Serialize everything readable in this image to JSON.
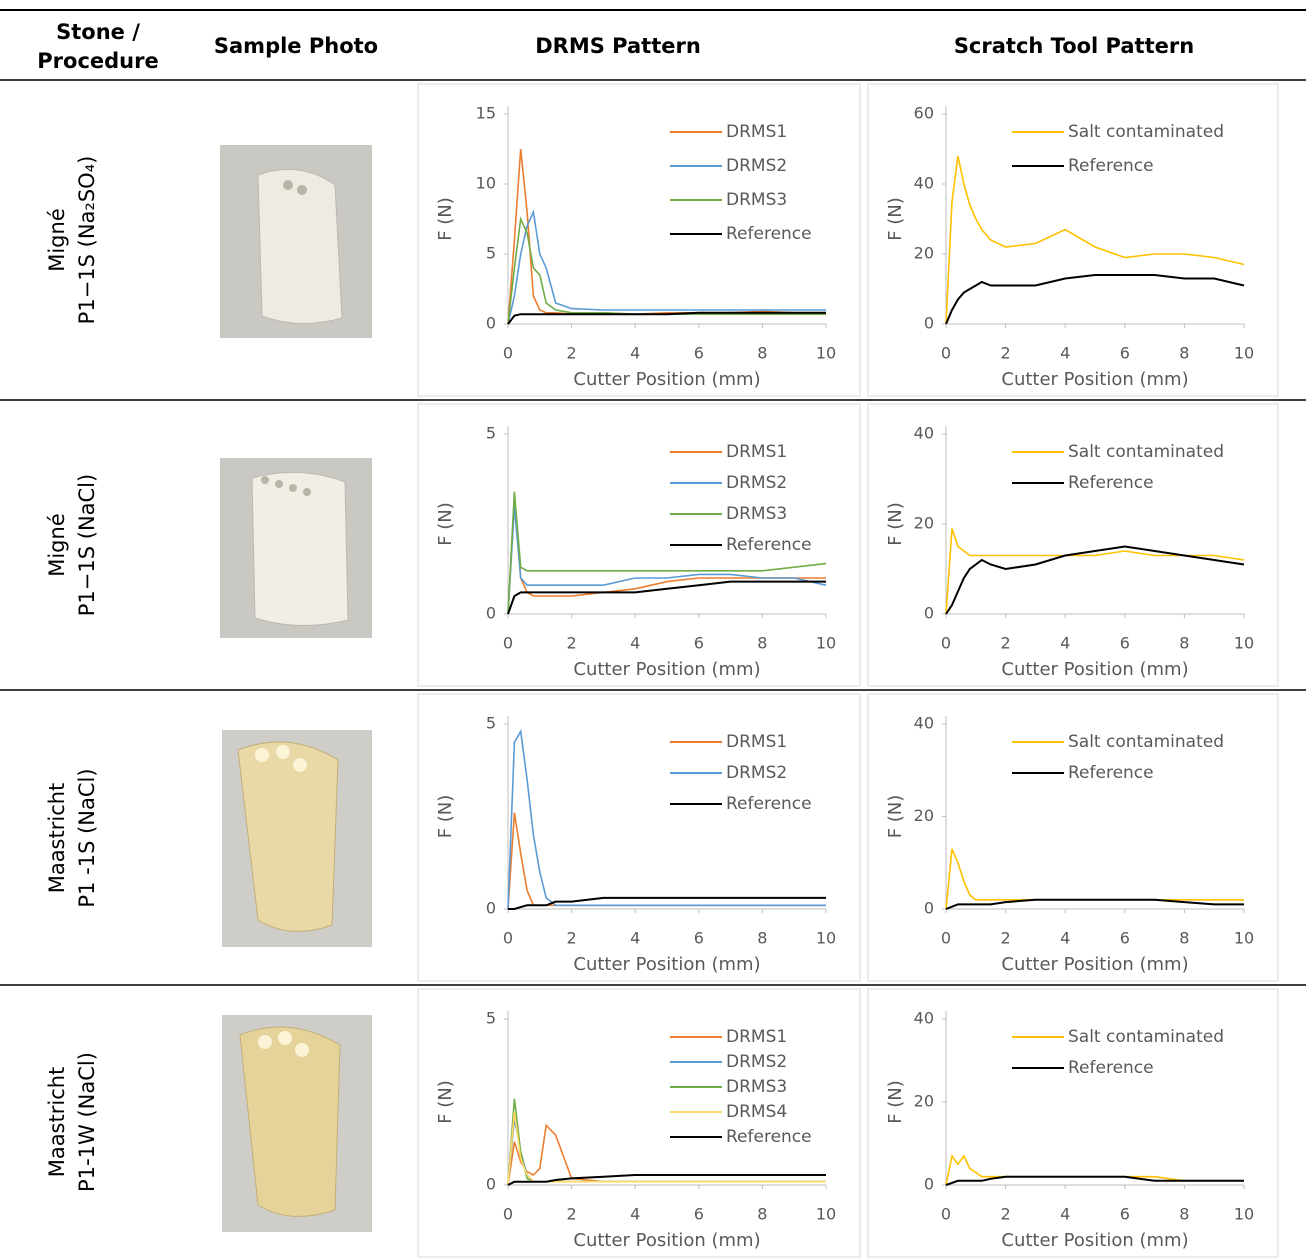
{
  "table": {
    "headers": [
      [
        "Stone /",
        "Procedure"
      ],
      "Sample Photo",
      "DRMS Pattern",
      "Scratch Tool Pattern"
    ],
    "rows": [
      [
        "Migné",
        "P1−1S (Na₂SO₄)"
      ],
      [
        "Migné",
        "P1−1S (NaCl)"
      ],
      [
        "Maastricht",
        "P1 -1S (NaCl)"
      ],
      [
        "Maastricht",
        "P1-1W (NaCl)"
      ]
    ]
  },
  "chart_data": [
    {
      "type": "line",
      "x_label": "Cutter Position (mm)",
      "y_label": "F (N)",
      "legend": "top-right",
      "x": [
        0,
        0.2,
        0.4,
        0.6,
        0.8,
        1,
        1.2,
        1.5,
        2,
        3,
        4,
        5,
        6,
        7,
        8,
        9,
        10
      ],
      "xlim": [
        0,
        10
      ],
      "xticks": [
        0,
        2,
        4,
        6,
        8,
        10
      ],
      "ylim": [
        0,
        15
      ],
      "yticks": [
        0,
        5,
        10,
        15
      ],
      "series": [
        {
          "name": "DRMS1",
          "color": "#ed7d31",
          "values": [
            0,
            6,
            12.5,
            8,
            2,
            1,
            0.8,
            0.8,
            0.7,
            0.8,
            0.7,
            0.8,
            0.8,
            0.8,
            0.9,
            0.8,
            0.8
          ]
        },
        {
          "name": "DRMS2",
          "color": "#5b9bd5",
          "values": [
            0,
            2,
            5,
            7,
            8,
            5,
            4,
            1.5,
            1.1,
            1,
            1,
            1,
            1,
            1,
            1,
            1,
            1
          ]
        },
        {
          "name": "DRMS3",
          "color": "#70ad47",
          "values": [
            0,
            4,
            7.5,
            6.5,
            4,
            3.5,
            1.5,
            1,
            0.8,
            0.8,
            0.7,
            0.7,
            0.7,
            0.7,
            0.7,
            0.7,
            0.7
          ]
        },
        {
          "name": "Reference",
          "color": "#000000",
          "values": [
            0,
            0.6,
            0.7,
            0.7,
            0.7,
            0.7,
            0.7,
            0.7,
            0.7,
            0.7,
            0.7,
            0.7,
            0.8,
            0.8,
            0.8,
            0.8,
            0.8
          ]
        }
      ]
    },
    {
      "type": "line",
      "x_label": "Cutter Position (mm)",
      "y_label": "F (N)",
      "legend": "top-right",
      "x": [
        0,
        0.2,
        0.4,
        0.6,
        0.8,
        1,
        1.2,
        1.5,
        2,
        3,
        4,
        5,
        6,
        7,
        8,
        9,
        10
      ],
      "xlim": [
        0,
        10
      ],
      "xticks": [
        0,
        2,
        4,
        6,
        8,
        10
      ],
      "ylim": [
        0,
        60
      ],
      "yticks": [
        0,
        20,
        40,
        60
      ],
      "series": [
        {
          "name": "Salt contaminated",
          "color": "#ffc000",
          "values": [
            0,
            35,
            48,
            40,
            34,
            30,
            27,
            24,
            22,
            23,
            27,
            22,
            19,
            20,
            20,
            19,
            17
          ]
        },
        {
          "name": "Reference",
          "color": "#000000",
          "values": [
            0,
            4,
            7,
            9,
            10,
            11,
            12,
            11,
            11,
            11,
            13,
            14,
            14,
            14,
            13,
            13,
            11
          ]
        }
      ]
    },
    {
      "type": "line",
      "x_label": "Cutter Position (mm)",
      "y_label": "F (N)",
      "legend": "top-right",
      "x": [
        0,
        0.2,
        0.4,
        0.6,
        0.8,
        1,
        1.2,
        1.5,
        2,
        3,
        4,
        5,
        6,
        7,
        8,
        9,
        10
      ],
      "xlim": [
        0,
        10
      ],
      "xticks": [
        0,
        2,
        4,
        6,
        8,
        10
      ],
      "ylim": [
        0,
        5
      ],
      "yticks": [
        0,
        5
      ],
      "series": [
        {
          "name": "DRMS1",
          "color": "#ed7d31",
          "values": [
            0,
            3.2,
            1,
            0.6,
            0.5,
            0.5,
            0.5,
            0.5,
            0.5,
            0.6,
            0.7,
            0.9,
            1,
            1,
            1,
            1,
            1
          ]
        },
        {
          "name": "DRMS2",
          "color": "#5b9bd5",
          "values": [
            0,
            3,
            1,
            0.8,
            0.8,
            0.8,
            0.8,
            0.8,
            0.8,
            0.8,
            1,
            1,
            1.1,
            1.1,
            1,
            1,
            0.8
          ]
        },
        {
          "name": "DRMS3",
          "color": "#70ad47",
          "values": [
            0,
            3.4,
            1.3,
            1.2,
            1.2,
            1.2,
            1.2,
            1.2,
            1.2,
            1.2,
            1.2,
            1.2,
            1.2,
            1.2,
            1.2,
            1.3,
            1.4
          ]
        },
        {
          "name": "Reference",
          "color": "#000000",
          "values": [
            0,
            0.5,
            0.6,
            0.6,
            0.6,
            0.6,
            0.6,
            0.6,
            0.6,
            0.6,
            0.6,
            0.7,
            0.8,
            0.9,
            0.9,
            0.9,
            0.9
          ]
        }
      ]
    },
    {
      "type": "line",
      "x_label": "Cutter Position (mm)",
      "y_label": "F (N)",
      "legend": "top-right",
      "x": [
        0,
        0.2,
        0.4,
        0.6,
        0.8,
        1,
        1.2,
        1.5,
        2,
        3,
        4,
        5,
        6,
        7,
        8,
        9,
        10
      ],
      "xlim": [
        0,
        10
      ],
      "xticks": [
        0,
        2,
        4,
        6,
        8,
        10
      ],
      "ylim": [
        0,
        40
      ],
      "yticks": [
        0,
        20,
        40
      ],
      "series": [
        {
          "name": "Salt contaminated",
          "color": "#ffc000",
          "values": [
            0,
            19,
            15,
            14,
            13,
            13,
            13,
            13,
            13,
            13,
            13,
            13,
            14,
            13,
            13,
            13,
            12
          ]
        },
        {
          "name": "Reference",
          "color": "#000000",
          "values": [
            0,
            2,
            5,
            8,
            10,
            11,
            12,
            11,
            10,
            11,
            13,
            14,
            15,
            14,
            13,
            12,
            11
          ]
        }
      ]
    },
    {
      "type": "line",
      "x_label": "Cutter Position (mm)",
      "y_label": "F (N)",
      "legend": "top-right",
      "x": [
        0,
        0.2,
        0.4,
        0.6,
        0.8,
        1,
        1.2,
        1.5,
        2,
        3,
        4,
        5,
        6,
        7,
        8,
        9,
        10
      ],
      "xlim": [
        0,
        10
      ],
      "xticks": [
        0,
        2,
        4,
        6,
        8,
        10
      ],
      "ylim": [
        0,
        5
      ],
      "yticks": [
        0,
        5
      ],
      "series": [
        {
          "name": "DRMS1",
          "color": "#ed7d31",
          "values": [
            0,
            2.6,
            1.5,
            0.5,
            0.1,
            0.1,
            0.1,
            0.1,
            0.1,
            0.1,
            0.1,
            0.1,
            0.1,
            0.1,
            0.1,
            0.1,
            0.1
          ]
        },
        {
          "name": "DRMS2",
          "color": "#5b9bd5",
          "values": [
            0,
            4.5,
            4.8,
            3.5,
            2,
            1,
            0.3,
            0.1,
            0.1,
            0.1,
            0.1,
            0.1,
            0.1,
            0.1,
            0.1,
            0.1,
            0.1
          ]
        },
        {
          "name": "Reference",
          "color": "#000000",
          "values": [
            0,
            0,
            0.05,
            0.1,
            0.1,
            0.1,
            0.1,
            0.2,
            0.2,
            0.3,
            0.3,
            0.3,
            0.3,
            0.3,
            0.3,
            0.3,
            0.3
          ]
        }
      ]
    },
    {
      "type": "line",
      "x_label": "Cutter Position (mm)",
      "y_label": "F (N)",
      "legend": "top-right",
      "x": [
        0,
        0.2,
        0.4,
        0.6,
        0.8,
        1,
        1.2,
        1.5,
        2,
        3,
        4,
        5,
        6,
        7,
        8,
        9,
        10
      ],
      "xlim": [
        0,
        10
      ],
      "xticks": [
        0,
        2,
        4,
        6,
        8,
        10
      ],
      "ylim": [
        0,
        40
      ],
      "yticks": [
        0,
        20,
        40
      ],
      "series": [
        {
          "name": "Salt contaminated",
          "color": "#ffc000",
          "values": [
            0,
            13,
            10,
            6,
            3,
            2,
            2,
            2,
            2,
            2,
            2,
            2,
            2,
            2,
            2,
            2,
            2
          ]
        },
        {
          "name": "Reference",
          "color": "#000000",
          "values": [
            0,
            0.5,
            1,
            1,
            1,
            1,
            1,
            1,
            1.5,
            2,
            2,
            2,
            2,
            2,
            1.5,
            1,
            1
          ]
        }
      ]
    },
    {
      "type": "line",
      "x_label": "Cutter Position (mm)",
      "y_label": "F (N)",
      "legend": "top-right",
      "x": [
        0,
        0.2,
        0.4,
        0.6,
        0.8,
        1,
        1.2,
        1.5,
        2,
        3,
        4,
        5,
        6,
        7,
        8,
        9,
        10
      ],
      "xlim": [
        0,
        10
      ],
      "xticks": [
        0,
        2,
        4,
        6,
        8,
        10
      ],
      "ylim": [
        0,
        5
      ],
      "yticks": [
        0,
        5
      ],
      "series": [
        {
          "name": "DRMS1",
          "color": "#ed7d31",
          "values": [
            0,
            1.3,
            0.7,
            0.4,
            0.3,
            0.5,
            1.8,
            1.5,
            0.2,
            0.1,
            0.1,
            0.1,
            0.1,
            0.1,
            0.1,
            0.1,
            0.1
          ]
        },
        {
          "name": "DRMS2",
          "color": "#5b9bd5",
          "values": [
            0,
            2,
            1,
            0.3,
            0.1,
            0.1,
            0.1,
            0.1,
            0.1,
            0.1,
            0.1,
            0.1,
            0.1,
            0.1,
            0.1,
            0.1,
            0.1
          ]
        },
        {
          "name": "DRMS3",
          "color": "#70ad47",
          "values": [
            0,
            2.6,
            1,
            0.2,
            0.1,
            0.1,
            0.1,
            0.1,
            0.1,
            0.1,
            0.1,
            0.1,
            0.1,
            0.1,
            0.1,
            0.1,
            0.1
          ]
        },
        {
          "name": "DRMS4",
          "color": "#ffd966",
          "values": [
            0,
            2.2,
            0.8,
            0.3,
            0.1,
            0.1,
            0.1,
            0.1,
            0.1,
            0.1,
            0.1,
            0.1,
            0.1,
            0.1,
            0.1,
            0.1,
            0.1
          ]
        },
        {
          "name": "Reference",
          "color": "#000000",
          "values": [
            0,
            0.1,
            0.1,
            0.1,
            0.1,
            0.1,
            0.1,
            0.15,
            0.2,
            0.25,
            0.3,
            0.3,
            0.3,
            0.3,
            0.3,
            0.3,
            0.3
          ]
        }
      ]
    },
    {
      "type": "line",
      "x_label": "Cutter Position (mm)",
      "y_label": "F (N)",
      "legend": "top-right",
      "x": [
        0,
        0.2,
        0.4,
        0.6,
        0.8,
        1,
        1.2,
        1.5,
        2,
        3,
        4,
        5,
        6,
        7,
        8,
        9,
        10
      ],
      "xlim": [
        0,
        10
      ],
      "xticks": [
        0,
        2,
        4,
        6,
        8,
        10
      ],
      "ylim": [
        0,
        40
      ],
      "yticks": [
        0,
        20,
        40
      ],
      "series": [
        {
          "name": "Salt contaminated",
          "color": "#ffc000",
          "values": [
            0,
            7,
            5,
            7,
            4,
            3,
            2,
            2,
            2,
            2,
            2,
            2,
            2,
            2,
            1,
            1,
            1
          ]
        },
        {
          "name": "Reference",
          "color": "#000000",
          "values": [
            0,
            0.5,
            1,
            1,
            1,
            1,
            1,
            1.5,
            2,
            2,
            2,
            2,
            2,
            1,
            1,
            1,
            1
          ]
        }
      ]
    }
  ]
}
